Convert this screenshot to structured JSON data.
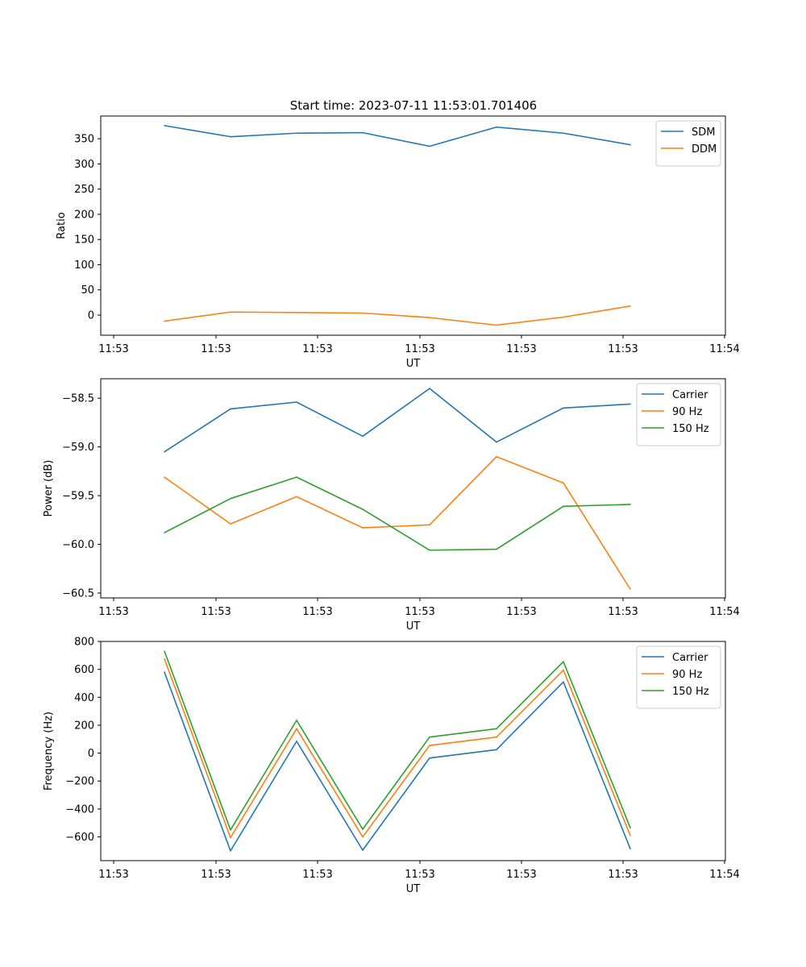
{
  "figure_title": "Start time: 2023-07-11 11:53:01.701406",
  "colors": {
    "c0": "#1f77b4",
    "c1": "#ff7f0e",
    "c2": "#2ca02c"
  },
  "chart_data": [
    {
      "type": "line",
      "title": "Start time: 2023-07-11 11:53:01.701406",
      "xlabel": "UT",
      "ylabel": "Ratio",
      "x_tick_labels": [
        "11:53",
        "11:53",
        "11:53",
        "11:53",
        "11:53",
        "11:53",
        "11:53",
        "11:54"
      ],
      "y_ticks": [
        0,
        50,
        100,
        150,
        200,
        250,
        300,
        350
      ],
      "y_tick_labels": [
        "0",
        "50",
        "100",
        "150",
        "200",
        "250",
        "300",
        "350"
      ],
      "ylim": [
        -40,
        395
      ],
      "legend_position": "top-right",
      "series": [
        {
          "name": "SDM",
          "color": "#1f77b4",
          "values": [
            376,
            354,
            361,
            362,
            335,
            373,
            361,
            338
          ]
        },
        {
          "name": "DDM",
          "color": "#ff7f0e",
          "values": [
            -12,
            6,
            5,
            4,
            -5,
            -20,
            -4,
            18
          ]
        }
      ]
    },
    {
      "type": "line",
      "xlabel": "UT",
      "ylabel": "Power (dB)",
      "x_tick_labels": [
        "11:53",
        "11:53",
        "11:53",
        "11:53",
        "11:53",
        "11:53",
        "11:53",
        "11:54"
      ],
      "y_ticks": [
        -60.5,
        -60.0,
        -59.5,
        -59.0,
        -58.5
      ],
      "y_tick_labels": [
        "−60.5",
        "−60.0",
        "−59.5",
        "−59.0",
        "−58.5"
      ],
      "ylim": [
        -60.55,
        -58.3
      ],
      "legend_position": "top-right",
      "series": [
        {
          "name": "Carrier",
          "color": "#1f77b4",
          "values": [
            -59.05,
            -58.61,
            -58.54,
            -58.89,
            -58.4,
            -58.95,
            -58.6,
            -58.56
          ]
        },
        {
          "name": "90 Hz",
          "color": "#ff7f0e",
          "values": [
            -59.31,
            -59.79,
            -59.51,
            -59.83,
            -59.8,
            -59.1,
            -59.37,
            -60.46
          ]
        },
        {
          "name": "150 Hz",
          "color": "#2ca02c",
          "values": [
            -59.88,
            -59.53,
            -59.31,
            -59.64,
            -60.06,
            -60.05,
            -59.61,
            -59.59
          ]
        }
      ]
    },
    {
      "type": "line",
      "xlabel": "UT",
      "ylabel": "Frequency (Hz)",
      "x_tick_labels": [
        "11:53",
        "11:53",
        "11:53",
        "11:53",
        "11:53",
        "11:53",
        "11:53",
        "11:54"
      ],
      "y_ticks": [
        -600,
        -400,
        -200,
        0,
        200,
        400,
        600,
        800
      ],
      "y_tick_labels": [
        "−600",
        "−400",
        "−200",
        "0",
        "200",
        "400",
        "600",
        "800"
      ],
      "ylim": [
        -770,
        800
      ],
      "legend_position": "top-right",
      "series": [
        {
          "name": "Carrier",
          "color": "#1f77b4",
          "values": [
            580,
            -700,
            85,
            -695,
            -35,
            25,
            510,
            -685
          ]
        },
        {
          "name": "90 Hz",
          "color": "#ff7f0e",
          "values": [
            675,
            -605,
            175,
            -600,
            55,
            115,
            595,
            -590
          ]
        },
        {
          "name": "150 Hz",
          "color": "#2ca02c",
          "values": [
            730,
            -550,
            235,
            -545,
            115,
            175,
            655,
            -535
          ]
        }
      ]
    }
  ]
}
